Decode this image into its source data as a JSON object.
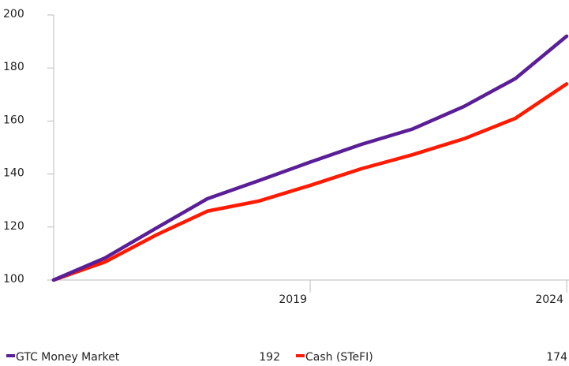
{
  "chart_data": {
    "type": "line",
    "x": [
      2014,
      2015,
      2016,
      2017,
      2018,
      2019,
      2020,
      2021,
      2022,
      2023,
      2024
    ],
    "series": [
      {
        "name": "GTC Money Market",
        "color": "#5a1e96",
        "values": [
          100,
          108.3,
          119.6,
          130.7,
          137.5,
          144.5,
          151.2,
          157,
          165.5,
          176,
          192
        ]
      },
      {
        "name": "Cash (STeFI)",
        "color": "#ff1a00",
        "values": [
          100,
          106.8,
          117,
          126,
          129.8,
          135.7,
          142,
          147.3,
          153.3,
          161,
          174
        ]
      }
    ],
    "xlim": [
      2014,
      2024
    ],
    "xticks": [
      2019,
      2024
    ],
    "ylim": [
      100,
      200
    ],
    "yticks": [
      100,
      120,
      140,
      160,
      180,
      200
    ]
  }
}
